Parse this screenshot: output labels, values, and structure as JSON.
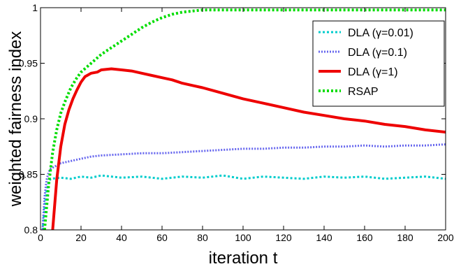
{
  "chart_data": {
    "type": "line",
    "xlabel": "iteration t",
    "ylabel": "weighted fairness index",
    "xlim": [
      0,
      200
    ],
    "ylim": [
      0.8,
      1
    ],
    "xticks": [
      "0",
      "20",
      "40",
      "60",
      "80",
      "100",
      "120",
      "140",
      "160",
      "180",
      "200"
    ],
    "yticks": [
      "0.8",
      "0.85",
      "0.9",
      "0.95",
      "1"
    ],
    "grid": false,
    "legend_position": "top-right",
    "series": [
      {
        "name": "DLA (γ=0.01)",
        "color": "#00cccc",
        "style": "dotted",
        "x": [
          1,
          2,
          3,
          4,
          5,
          10,
          15,
          20,
          25,
          30,
          40,
          50,
          60,
          70,
          80,
          90,
          100,
          110,
          120,
          130,
          140,
          150,
          160,
          170,
          180,
          190,
          200
        ],
        "y": [
          0.8,
          0.82,
          0.835,
          0.843,
          0.846,
          0.847,
          0.846,
          0.848,
          0.847,
          0.849,
          0.847,
          0.848,
          0.846,
          0.848,
          0.847,
          0.849,
          0.846,
          0.848,
          0.847,
          0.846,
          0.848,
          0.847,
          0.848,
          0.846,
          0.847,
          0.848,
          0.846
        ]
      },
      {
        "name": "DLA (γ=0.1)",
        "color": "#6666ee",
        "style": "dotted",
        "x": [
          1,
          2,
          3,
          4,
          5,
          10,
          15,
          20,
          25,
          30,
          40,
          50,
          60,
          70,
          80,
          90,
          100,
          110,
          120,
          130,
          140,
          150,
          160,
          170,
          180,
          190,
          200
        ],
        "y": [
          0.8,
          0.83,
          0.845,
          0.852,
          0.855,
          0.86,
          0.862,
          0.864,
          0.866,
          0.867,
          0.868,
          0.869,
          0.869,
          0.87,
          0.871,
          0.872,
          0.873,
          0.873,
          0.874,
          0.874,
          0.875,
          0.875,
          0.876,
          0.875,
          0.876,
          0.876,
          0.877
        ]
      },
      {
        "name": "DLA (γ=1)",
        "color": "#ee0000",
        "style": "solid",
        "x": [
          6,
          8,
          10,
          12,
          14,
          16,
          18,
          20,
          22,
          25,
          28,
          30,
          35,
          40,
          45,
          50,
          55,
          60,
          65,
          70,
          75,
          80,
          90,
          100,
          110,
          120,
          130,
          140,
          150,
          160,
          170,
          180,
          190,
          200
        ],
        "y": [
          0.8,
          0.845,
          0.875,
          0.895,
          0.908,
          0.918,
          0.926,
          0.933,
          0.938,
          0.941,
          0.942,
          0.944,
          0.945,
          0.944,
          0.943,
          0.941,
          0.939,
          0.937,
          0.935,
          0.932,
          0.93,
          0.928,
          0.923,
          0.918,
          0.914,
          0.91,
          0.906,
          0.903,
          0.9,
          0.898,
          0.895,
          0.893,
          0.89,
          0.888
        ]
      },
      {
        "name": "RSAP",
        "color": "#00dd00",
        "style": "dotted",
        "x": [
          2,
          4,
          6,
          8,
          10,
          12,
          15,
          18,
          20,
          25,
          30,
          35,
          40,
          45,
          50,
          55,
          60,
          65,
          70,
          75,
          80,
          85,
          90,
          100,
          120,
          140,
          160,
          180,
          200
        ],
        "y": [
          0.8,
          0.84,
          0.87,
          0.89,
          0.905,
          0.915,
          0.928,
          0.937,
          0.942,
          0.95,
          0.958,
          0.964,
          0.97,
          0.976,
          0.982,
          0.987,
          0.991,
          0.994,
          0.996,
          0.997,
          0.998,
          0.998,
          0.998,
          0.998,
          0.998,
          0.998,
          0.998,
          0.998,
          0.998
        ]
      }
    ]
  }
}
